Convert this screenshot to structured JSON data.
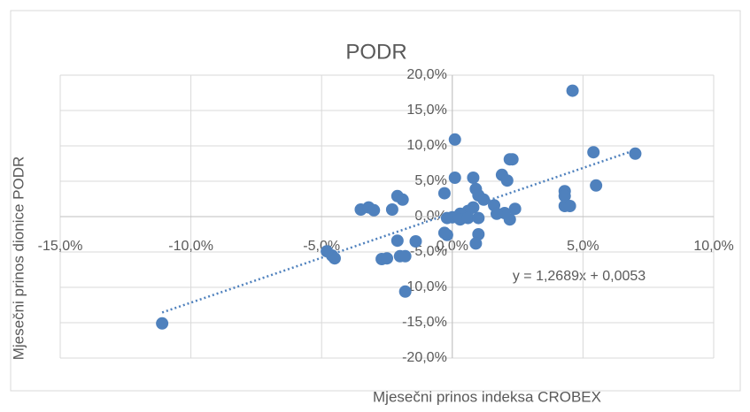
{
  "chart_data": {
    "type": "scatter",
    "title": "PODR",
    "x_label": "Mjesečni prinos indeksa CROBEX",
    "y_label": "Mjesečni prinos dionice PODR",
    "xlim": [
      -15,
      10
    ],
    "ylim": [
      -20,
      20
    ],
    "xticks": [
      {
        "value": -15,
        "label": "-15,0%"
      },
      {
        "value": -10,
        "label": "-10,0%"
      },
      {
        "value": -5,
        "label": "-5,0%"
      },
      {
        "value": 0,
        "label": "0,0%"
      },
      {
        "value": 5,
        "label": "5,0%"
      },
      {
        "value": 10,
        "label": "10,0%"
      }
    ],
    "yticks": [
      {
        "value": -20,
        "label": "-20,0%"
      },
      {
        "value": -15,
        "label": "-15,0%"
      },
      {
        "value": -10,
        "label": "-10,0%"
      },
      {
        "value": -5,
        "label": "-5,0%"
      },
      {
        "value": 0,
        "label": "0,0%"
      },
      {
        "value": 5,
        "label": "5,0%"
      },
      {
        "value": 10,
        "label": "10,0%"
      },
      {
        "value": 15,
        "label": "15,0%"
      },
      {
        "value": 20,
        "label": "20,0%"
      }
    ],
    "grid": true,
    "color": "#4f81bd",
    "series": [
      {
        "name": "PODR",
        "color": "#4f81bd",
        "x": [
          -11.1,
          4.6,
          0.1,
          5.4,
          7.0,
          2.2,
          2.3,
          1.9,
          2.1,
          0.8,
          0.1,
          -0.3,
          0.9,
          4.3,
          4.3,
          5.5,
          1.0,
          1.2,
          1.6,
          0.8,
          0.6,
          0.3,
          0.0,
          -0.2,
          0.3,
          0.6,
          2.4,
          2.2,
          2.0,
          1.7,
          1.0,
          4.3,
          4.5,
          -3.5,
          -3.2,
          -3.0,
          -2.3,
          -2.1,
          -1.9,
          -0.2,
          -0.3,
          1.0,
          0.9,
          -1.4,
          -2.1,
          -4.6,
          -4.5,
          -2.7,
          -2.5,
          -2.0,
          -1.8,
          -1.8,
          -4.8
        ],
        "values": [
          -15.1,
          17.8,
          10.9,
          9.1,
          8.9,
          8.1,
          8.1,
          5.9,
          5.1,
          5.5,
          5.5,
          3.3,
          3.9,
          3.6,
          2.9,
          4.4,
          3.0,
          2.4,
          1.6,
          1.3,
          0.8,
          0.4,
          -0.1,
          -0.2,
          -0.4,
          -0.2,
          1.1,
          -0.4,
          0.5,
          0.4,
          -0.2,
          1.5,
          1.5,
          1.0,
          1.3,
          0.9,
          1.0,
          2.9,
          2.4,
          -2.6,
          -2.3,
          -2.5,
          -3.8,
          -3.5,
          -3.4,
          -5.5,
          -5.9,
          -6.0,
          -5.9,
          -5.6,
          -5.6,
          -10.6,
          -4.9
        ]
      }
    ],
    "trendline": {
      "label": "y = 1,2689x + 0,0053",
      "slope": 1.2689,
      "intercept": 0.53
    }
  }
}
